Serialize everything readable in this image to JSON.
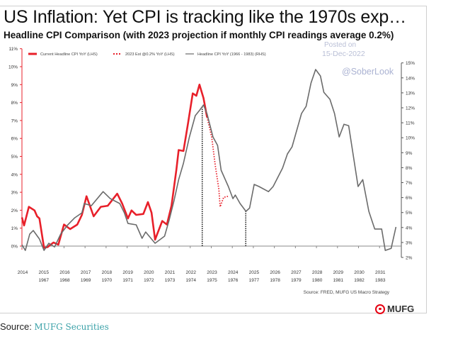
{
  "page": {
    "title": "US Inflation: Yet CPI is tracking like the 1970s exp…",
    "watermark_posted": "Posted on",
    "watermark_date": "15-Dec-2022",
    "watermark_handle": "@SoberLook",
    "footer_label": "Source: ",
    "footer_link": "MUFG Securities",
    "logo_text": "MUFG",
    "logo_color": "#e60012"
  },
  "chart_data": {
    "type": "line",
    "title": "Headline CPI Comparison (with 2023 projection if monthly CPI readings average 0.2%)",
    "source": "Source: FRED, MUFG US Macro Strategy",
    "legend_placement": "top",
    "grid": false,
    "x_axis": {
      "ticks": [
        "2014",
        "2015",
        "2016",
        "2017",
        "2018",
        "2019",
        "2020",
        "2021",
        "2022",
        "2023",
        "2024",
        "2025",
        "2026",
        "2027",
        "2028",
        "2029",
        "2030",
        "2031"
      ],
      "range": [
        2014,
        2032
      ]
    },
    "x2_axis": {
      "ticks": [
        "1967",
        "1968",
        "1969",
        "1970",
        "1971",
        "1972",
        "1973",
        "1974",
        "1975",
        "1976",
        "1977",
        "1978",
        "1979",
        "1980",
        "1981",
        "1982",
        "1983"
      ],
      "range": [
        1966,
        1984
      ]
    },
    "y_left": {
      "ticks": [
        "0%",
        "1%",
        "2%",
        "3%",
        "4%",
        "5%",
        "6%",
        "7%",
        "8%",
        "9%",
        "10%",
        "11%"
      ],
      "range": [
        0,
        11
      ],
      "color": "#e8202a"
    },
    "y_right": {
      "ticks": [
        "2%",
        "3%",
        "4%",
        "5%",
        "6%",
        "7%",
        "8%",
        "9%",
        "10%",
        "11%",
        "12%",
        "13%",
        "14%",
        "15%"
      ],
      "range": [
        2,
        15
      ]
    },
    "series": [
      {
        "name": "Current Headline CPI YoY (LHS)",
        "axis": "left",
        "style": "solid",
        "color": "#e8202a",
        "x": [
          2014.0,
          2014.1,
          2014.33,
          2014.6,
          2014.72,
          2014.83,
          2015.05,
          2015.22,
          2015.5,
          2015.73,
          2016.0,
          2016.29,
          2016.63,
          2016.85,
          2017.07,
          2017.41,
          2017.75,
          2018.08,
          2018.53,
          2018.76,
          2019.04,
          2019.21,
          2019.43,
          2019.77,
          2019.99,
          2020.16,
          2020.33,
          2020.67,
          2020.89,
          2021.11,
          2021.34,
          2021.45,
          2021.68,
          2021.9,
          2022.12,
          2022.29,
          2022.44,
          2022.63,
          2022.8
        ],
        "y": [
          1.6,
          1.15,
          2.19,
          1.99,
          1.66,
          1.54,
          -0.1,
          -0.05,
          0.2,
          0.08,
          1.2,
          0.95,
          1.2,
          1.74,
          2.78,
          1.66,
          2.19,
          2.25,
          2.92,
          2.38,
          1.54,
          1.99,
          1.74,
          1.79,
          2.45,
          1.86,
          0.36,
          1.4,
          1.2,
          2.25,
          4.23,
          5.35,
          5.3,
          6.88,
          8.51,
          8.38,
          9.0,
          8.25,
          7.19
        ]
      },
      {
        "name": "2023 Est @0.2% YoY (LHS)",
        "axis": "left",
        "style": "dotted",
        "color": "#e8202a",
        "x": [
          2022.8,
          2023.02,
          2023.19,
          2023.36,
          2023.42,
          2023.59,
          2023.81
        ],
        "y": [
          7.19,
          6.07,
          4.5,
          3.17,
          2.19,
          2.72,
          2.78
        ]
      },
      {
        "name": "Headline CPI YoY (1966 - 1983) (RHS)",
        "axis": "right",
        "style": "solid",
        "color": "#6b6b6b",
        "x": [
          1966.0,
          1966.16,
          1966.37,
          1966.54,
          1966.83,
          1967.05,
          1967.28,
          1967.55,
          1967.84,
          1968.18,
          1968.51,
          1968.85,
          1968.96,
          1969.3,
          1969.86,
          1970.2,
          1970.65,
          1970.87,
          1971.04,
          1971.43,
          1971.71,
          1971.88,
          1972.33,
          1972.78,
          1973.0,
          1973.23,
          1973.45,
          1973.68,
          1973.96,
          1974.24,
          1974.46,
          1974.63,
          1974.8,
          1975.08,
          1975.3,
          1975.47,
          1975.81,
          1976.03,
          1976.14,
          1976.37,
          1976.65,
          1976.82,
          1977.04,
          1977.27,
          1977.72,
          1977.94,
          1978.39,
          1978.62,
          1978.84,
          1979.29,
          1979.51,
          1979.74,
          1979.96,
          1980.19,
          1980.35,
          1980.64,
          1980.86,
          1981.08,
          1981.31,
          1981.53,
          1981.98,
          1982.2,
          1982.49,
          1982.77,
          1983.1,
          1983.27,
          1983.55,
          1983.78
        ],
        "y": [
          2.85,
          2.47,
          3.56,
          3.8,
          3.23,
          2.47,
          2.95,
          2.7,
          3.56,
          4.18,
          4.65,
          4.98,
          5.6,
          5.46,
          6.4,
          5.93,
          5.6,
          4.98,
          4.27,
          4.18,
          3.28,
          3.7,
          2.95,
          3.42,
          4.5,
          5.8,
          7.2,
          8.3,
          10.05,
          11.48,
          11.86,
          12.19,
          11.6,
          10.05,
          9.49,
          7.83,
          6.74,
          5.93,
          6.17,
          5.6,
          5.08,
          5.3,
          6.88,
          6.74,
          6.4,
          6.74,
          7.97,
          8.92,
          9.39,
          11.62,
          12.1,
          13.66,
          14.56,
          14.13,
          13.04,
          12.57,
          11.62,
          10.05,
          10.9,
          10.8,
          6.74,
          7.2,
          5.08,
          3.9,
          3.9,
          2.47,
          2.6,
          4.04
        ]
      }
    ],
    "markers": [
      {
        "type": "vertical-dotted",
        "x": 2022.57,
        "series": "Headline CPI YoY (1966 - 1983) (RHS)"
      },
      {
        "type": "vertical-dotted",
        "x": 2024.64,
        "series": "Headline CPI YoY (1966 - 1983) (RHS)"
      }
    ]
  }
}
